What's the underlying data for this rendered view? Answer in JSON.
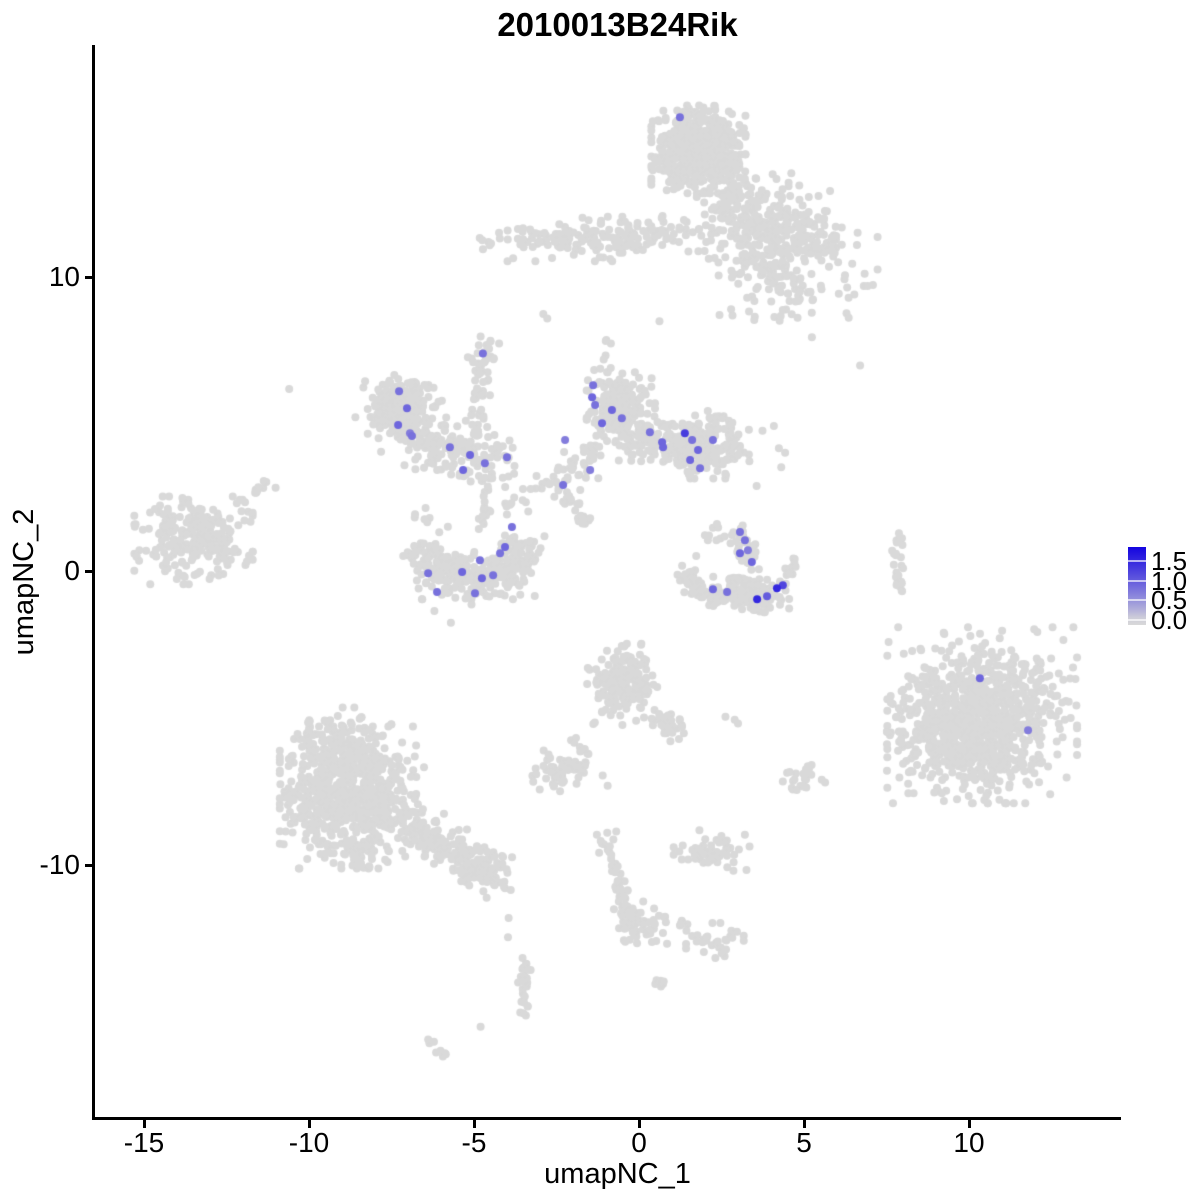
{
  "chart_data": {
    "type": "scatter",
    "title": "2010013B24Rik",
    "xlabel": "umapNC_1",
    "ylabel": "umapNC_2",
    "xlim": [
      -16.5,
      14.5
    ],
    "ylim": [
      -18.6,
      17.9
    ],
    "x_ticks": [
      {
        "value": -15,
        "label": "-15"
      },
      {
        "value": -10,
        "label": "-10"
      },
      {
        "value": -5,
        "label": "-5"
      },
      {
        "value": 0,
        "label": "0"
      },
      {
        "value": 5,
        "label": "5"
      },
      {
        "value": 10,
        "label": "10"
      }
    ],
    "y_ticks": [
      {
        "value": 10,
        "label": "10"
      },
      {
        "value": 0,
        "label": "0"
      },
      {
        "value": -10,
        "label": "-10"
      }
    ],
    "grid": false,
    "legend_position": "right",
    "point_radius_px": 4,
    "colors": {
      "base_gray": "#d9d9d9",
      "scale_low": "#d9d9d9",
      "scale_high": "#1405e0",
      "axis": "#000000",
      "background": "#ffffff"
    },
    "color_scale": {
      "labels": [
        "1.5",
        "1.0",
        "0.5",
        "0.0"
      ],
      "values": [
        1.5,
        1.0,
        0.5,
        0.0
      ],
      "bar_value_min": -0.12,
      "bar_value_max": 1.85
    },
    "gray_clusters": [
      {
        "name": "top-core",
        "type": "gauss",
        "cx": 1.8,
        "cy": 14.35,
        "sx": 0.62,
        "sy": 0.65,
        "n": 620
      },
      {
        "name": "top-neck",
        "type": "gauss",
        "cx": 2.9,
        "cy": 12.7,
        "sx": 0.5,
        "sy": 0.6,
        "n": 90
      },
      {
        "name": "top-tail",
        "type": "gauss",
        "cx": 3.9,
        "cy": 11.7,
        "sx": 0.9,
        "sy": 0.8,
        "n": 120
      },
      {
        "name": "top-right-blob",
        "type": "gauss",
        "cx": 4.9,
        "cy": 11.5,
        "sx": 0.75,
        "sy": 0.55,
        "n": 110
      },
      {
        "name": "top-lower-scatter",
        "type": "gauss",
        "cx": 4.7,
        "cy": 9.8,
        "sx": 1.1,
        "sy": 0.8,
        "n": 110
      },
      {
        "name": "top-link",
        "type": "gauss",
        "cx": 3.4,
        "cy": 10.7,
        "sx": 0.6,
        "sy": 0.6,
        "n": 40
      },
      {
        "name": "band",
        "type": "gauss",
        "cx": -1.8,
        "cy": 11.3,
        "sx": 1.4,
        "sy": 0.33,
        "n": 150
      },
      {
        "name": "band-ext",
        "type": "line",
        "x0": -0.3,
        "y0": 11.35,
        "x1": 2.3,
        "y1": 11.7,
        "jitter": 0.3,
        "n": 35
      },
      {
        "name": "butterfly-core",
        "type": "gauss",
        "cx": -7.3,
        "cy": 5.6,
        "sx": 0.4,
        "sy": 0.45,
        "n": 200
      },
      {
        "name": "butterfly-halo",
        "type": "gauss",
        "cx": -7.1,
        "cy": 5.3,
        "sx": 0.65,
        "sy": 0.7,
        "n": 80
      },
      {
        "name": "butterfly-arc",
        "type": "line",
        "x0": -6.7,
        "y0": 4.5,
        "x1": -4.1,
        "y1": 3.7,
        "jitter": 0.42,
        "n": 150
      },
      {
        "name": "arc-up-strand",
        "type": "line",
        "x0": -5.05,
        "y0": 4.3,
        "x1": -4.72,
        "y1": 7.2,
        "jitter": 0.15,
        "n": 40
      },
      {
        "name": "strand-top-blob",
        "type": "gauss",
        "cx": -4.68,
        "cy": 7.45,
        "sx": 0.22,
        "sy": 0.28,
        "n": 20
      },
      {
        "name": "central-left",
        "type": "gauss",
        "cx": -0.55,
        "cy": 5.5,
        "sx": 0.45,
        "sy": 0.55,
        "n": 230
      },
      {
        "name": "central-right",
        "type": "gauss",
        "cx": 1.95,
        "cy": 4.3,
        "sx": 0.6,
        "sy": 0.5,
        "n": 230
      },
      {
        "name": "central-bridge",
        "type": "line",
        "x0": -0.3,
        "y0": 4.5,
        "x1": 1.3,
        "y1": 4.3,
        "jitter": 0.38,
        "n": 70
      },
      {
        "name": "central-sw-strand",
        "type": "line",
        "x0": -2.4,
        "y0": 3.0,
        "x1": -1.3,
        "y1": 4.1,
        "jitter": 0.3,
        "n": 45
      },
      {
        "name": "central-top-wisp",
        "type": "line",
        "x0": -1.3,
        "y0": 6.5,
        "x1": -0.95,
        "y1": 7.9,
        "jitter": 0.15,
        "n": 10
      },
      {
        "name": "diag-stream",
        "type": "line",
        "x0": -2.85,
        "y0": 3.2,
        "x1": -1.4,
        "y1": 1.6,
        "jitter": 0.15,
        "n": 30
      },
      {
        "name": "crescent",
        "type": "arc",
        "cx": -5.0,
        "cy": 1.1,
        "r0": 0.95,
        "r1": 2.05,
        "d0": 185,
        "d1": 358,
        "jitter": 0.12,
        "n": 270
      },
      {
        "name": "crescent-fill",
        "type": "gauss",
        "cx": -5.0,
        "cy": -0.15,
        "sx": 0.85,
        "sy": 0.35,
        "n": 60
      },
      {
        "name": "crescent-strand",
        "type": "line",
        "x0": -4.75,
        "y0": 1.4,
        "x1": -4.55,
        "y1": 2.9,
        "jitter": 0.13,
        "n": 15
      },
      {
        "name": "crescent-ne-dots",
        "type": "line",
        "x0": -3.9,
        "y0": 1.9,
        "x1": -3.4,
        "y1": 2.9,
        "jitter": 0.18,
        "n": 12
      },
      {
        "name": "crescent-nw-dots",
        "type": "gauss",
        "cx": -6.3,
        "cy": 1.9,
        "sx": 0.35,
        "sy": 0.3,
        "n": 8
      },
      {
        "name": "gull-left-wing",
        "type": "arc",
        "cx": 2.6,
        "cy": 0.4,
        "r0": 1.15,
        "r1": 1.5,
        "d0": 195,
        "d1": 285,
        "jitter": 0.1,
        "n": 70
      },
      {
        "name": "gull-body",
        "type": "gauss",
        "cx": 3.4,
        "cy": -0.75,
        "sx": 0.5,
        "sy": 0.28,
        "n": 120
      },
      {
        "name": "gull-tip",
        "type": "line",
        "x0": 4.35,
        "y0": -0.35,
        "x1": 4.65,
        "y1": 0.35,
        "jitter": 0.13,
        "n": 16
      },
      {
        "name": "gull-up-strand",
        "type": "line",
        "x0": 3.05,
        "y0": 1.5,
        "x1": 3.35,
        "y1": 0.2,
        "jitter": 0.18,
        "n": 35
      },
      {
        "name": "gull-nw-dots",
        "type": "gauss",
        "cx": 2.3,
        "cy": 1.2,
        "sx": 0.3,
        "sy": 0.35,
        "n": 10
      },
      {
        "name": "left-cluster",
        "type": "gauss",
        "cx": -13.5,
        "cy": 1.05,
        "sx": 0.78,
        "sy": 0.65,
        "n": 250
      },
      {
        "name": "left-strand",
        "type": "line",
        "x0": -12.2,
        "y0": 2.3,
        "x1": -11.2,
        "y1": 3.0,
        "jitter": 0.14,
        "n": 12
      },
      {
        "name": "right-vstrand",
        "type": "line",
        "x0": 7.8,
        "y0": 1.35,
        "x1": 7.9,
        "y1": -0.75,
        "jitter": 0.07,
        "n": 26
      },
      {
        "name": "right-big",
        "type": "gauss",
        "cx": 10.4,
        "cy": -4.9,
        "sx": 1.25,
        "sy": 1.3,
        "n": 800
      },
      {
        "name": "right-big-core",
        "type": "gauss",
        "cx": 9.7,
        "cy": -5.6,
        "sx": 0.95,
        "sy": 0.85,
        "n": 280
      },
      {
        "name": "mid-cluster",
        "type": "gauss",
        "cx": -0.5,
        "cy": -3.85,
        "sx": 0.5,
        "sy": 0.6,
        "n": 190
      },
      {
        "name": "mid-tail",
        "type": "line",
        "x0": 0.45,
        "y0": -4.7,
        "x1": 1.25,
        "y1": -5.7,
        "jitter": 0.2,
        "n": 35
      },
      {
        "name": "mid-low-strand",
        "type": "line",
        "x0": -2.1,
        "y0": -5.6,
        "x1": -1.6,
        "y1": -6.4,
        "jitter": 0.1,
        "n": 8
      },
      {
        "name": "small-blob",
        "type": "gauss",
        "cx": -2.35,
        "cy": -6.85,
        "sx": 0.55,
        "sy": 0.33,
        "n": 60
      },
      {
        "name": "small-blob-right",
        "type": "gauss",
        "cx": 4.95,
        "cy": -7.1,
        "sx": 0.3,
        "sy": 0.22,
        "n": 25
      },
      {
        "name": "bottomleft-core",
        "type": "gauss",
        "cx": -8.7,
        "cy": -7.7,
        "sx": 0.95,
        "sy": 1.05,
        "n": 700
      },
      {
        "name": "bottomleft-top",
        "type": "gauss",
        "cx": -9.0,
        "cy": -5.9,
        "sx": 0.65,
        "sy": 0.55,
        "n": 130
      },
      {
        "name": "bottomleft-tail",
        "type": "line",
        "x0": -6.9,
        "y0": -8.6,
        "x1": -4.6,
        "y1": -10.3,
        "jitter": 0.33,
        "n": 170
      },
      {
        "name": "tail-end-blob",
        "type": "gauss",
        "cx": -4.55,
        "cy": -10.3,
        "sx": 0.4,
        "sy": 0.35,
        "n": 45
      },
      {
        "name": "bottom-vstrand",
        "type": "line",
        "x0": -3.42,
        "y0": -13.2,
        "x1": -3.55,
        "y1": -15.2,
        "jitter": 0.09,
        "n": 30
      },
      {
        "name": "bottom-diag-strand",
        "type": "line",
        "x0": -0.95,
        "y0": -9.45,
        "x1": -0.25,
        "y1": -11.85,
        "jitter": 0.12,
        "n": 40
      },
      {
        "name": "diag-top-blob",
        "type": "gauss",
        "cx": -1.0,
        "cy": -9.2,
        "sx": 0.18,
        "sy": 0.2,
        "n": 10
      },
      {
        "name": "diag-bottom-blob",
        "type": "gauss",
        "cx": 0.05,
        "cy": -12.0,
        "sx": 0.42,
        "sy": 0.35,
        "n": 55
      },
      {
        "name": "dash-a",
        "type": "line",
        "x0": 1.2,
        "y0": -12.0,
        "x1": 1.55,
        "y1": -12.2,
        "jitter": 0.07,
        "n": 7
      },
      {
        "name": "dash-b",
        "type": "line",
        "x0": 0.45,
        "y0": -13.85,
        "x1": 0.8,
        "y1": -14.1,
        "jitter": 0.07,
        "n": 7
      },
      {
        "name": "blob-mid-b1",
        "type": "gauss",
        "cx": 2.2,
        "cy": -9.5,
        "sx": 0.5,
        "sy": 0.3,
        "n": 55
      },
      {
        "name": "blob-mid-b2",
        "type": "gauss",
        "cx": 2.3,
        "cy": -12.6,
        "sx": 0.38,
        "sy": 0.28,
        "n": 30
      },
      {
        "name": "sparse-ne-of-central",
        "type": "gauss",
        "cx": 4.2,
        "cy": 4.2,
        "sx": 0.5,
        "sy": 0.6,
        "n": 7
      },
      {
        "name": "bl-diag-dash",
        "type": "line",
        "x0": -6.4,
        "y0": -16.0,
        "x1": -5.85,
        "y1": -16.5,
        "jitter": 0.06,
        "n": 8
      }
    ],
    "extra_gray_points": [
      [
        -10.6,
        6.2
      ],
      [
        6.7,
        7.0
      ],
      [
        -2.9,
        8.75
      ],
      [
        -2.78,
        8.6
      ],
      [
        0.62,
        8.5
      ],
      [
        -3.95,
        -11.8
      ],
      [
        -3.97,
        -12.45
      ],
      [
        -4.8,
        -15.5
      ],
      [
        -0.76,
        -11.5
      ],
      [
        2.62,
        -4.95
      ],
      [
        2.9,
        -5.05
      ],
      [
        3.0,
        -5.18
      ],
      [
        -6.2,
        -1.35
      ],
      [
        -5.7,
        -1.75
      ],
      [
        -1.1,
        -6.95
      ],
      [
        -0.95,
        -7.3
      ]
    ],
    "highlighted_points": [
      [
        1.24,
        15.44,
        0.8
      ],
      [
        -7.27,
        6.12,
        0.8
      ],
      [
        -7.03,
        5.54,
        0.9
      ],
      [
        -7.3,
        4.97,
        0.9
      ],
      [
        -6.88,
        4.6,
        0.8
      ],
      [
        -6.94,
        4.69,
        0.7
      ],
      [
        -5.73,
        4.22,
        0.8
      ],
      [
        -5.12,
        3.95,
        0.9
      ],
      [
        -4.0,
        3.88,
        0.8
      ],
      [
        -5.33,
        3.44,
        0.9
      ],
      [
        -4.67,
        3.67,
        0.8
      ],
      [
        -4.73,
        7.41,
        0.8
      ],
      [
        -3.85,
        1.5,
        0.8
      ],
      [
        -4.06,
        0.82,
        0.9
      ],
      [
        -4.82,
        0.37,
        0.8
      ],
      [
        -4.21,
        0.61,
        0.8
      ],
      [
        -6.39,
        -0.07,
        0.8
      ],
      [
        -5.36,
        -0.03,
        0.9
      ],
      [
        -4.76,
        -0.24,
        0.9
      ],
      [
        -4.42,
        -0.14,
        0.8
      ],
      [
        -6.12,
        -0.71,
        0.8
      ],
      [
        -4.97,
        -0.75,
        0.8
      ],
      [
        -1.39,
        6.33,
        0.8
      ],
      [
        -1.42,
        5.92,
        0.9
      ],
      [
        -1.33,
        5.65,
        0.8
      ],
      [
        -0.82,
        5.48,
        0.9
      ],
      [
        -0.52,
        5.2,
        0.8
      ],
      [
        -1.12,
        5.03,
        0.9
      ],
      [
        0.33,
        4.73,
        0.8
      ],
      [
        -2.24,
        4.46,
        0.7
      ],
      [
        0.7,
        4.39,
        0.9
      ],
      [
        1.39,
        4.69,
        1.3
      ],
      [
        0.73,
        4.22,
        0.9
      ],
      [
        1.61,
        4.46,
        0.8
      ],
      [
        1.79,
        4.12,
        0.9
      ],
      [
        2.24,
        4.46,
        0.8
      ],
      [
        1.55,
        3.78,
        0.9
      ],
      [
        1.85,
        3.5,
        0.8
      ],
      [
        -1.48,
        3.44,
        0.7
      ],
      [
        -2.3,
        2.93,
        0.8
      ],
      [
        3.06,
        1.33,
        0.8
      ],
      [
        3.21,
        1.05,
        0.8
      ],
      [
        3.06,
        0.61,
        0.9
      ],
      [
        3.3,
        0.71,
        0.7
      ],
      [
        3.42,
        0.31,
        0.9
      ],
      [
        2.24,
        -0.61,
        0.9
      ],
      [
        2.67,
        -0.71,
        0.8
      ],
      [
        3.88,
        -0.85,
        1.0
      ],
      [
        3.58,
        -0.95,
        1.5
      ],
      [
        4.18,
        -0.58,
        1.5
      ],
      [
        4.36,
        -0.48,
        1.2
      ],
      [
        10.33,
        -3.64,
        0.9
      ],
      [
        11.79,
        -5.41,
        0.7
      ]
    ]
  }
}
